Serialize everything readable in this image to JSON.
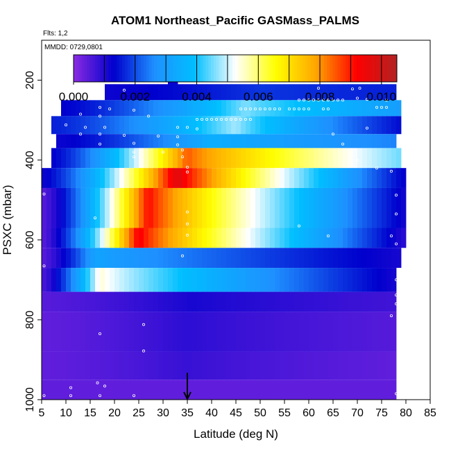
{
  "header": {
    "title": "ATOM1 Northeast_Pacific GASMass_PALMS",
    "flights": "Flts: 1,2",
    "mmdd": "MMDD: 0729,0801"
  },
  "chart_data": {
    "type": "heatmap",
    "title": "ATOM1 Northeast_Pacific GASMass_PALMS",
    "xlabel": "Latitude (deg N)",
    "ylabel": "PSXC (mbar)",
    "xlim": [
      5,
      85
    ],
    "ylim": [
      1000,
      100
    ],
    "x_ticks": [
      "5",
      "10",
      "15",
      "20",
      "25",
      "30",
      "35",
      "40",
      "45",
      "50",
      "55",
      "60",
      "65",
      "70",
      "75",
      "80",
      "85"
    ],
    "y_ticks": [
      "200",
      "400",
      "600",
      "800",
      "1000"
    ],
    "colorbar": {
      "range": [
        0,
        0.0105
      ],
      "ticks": [
        "0.000",
        "0.002",
        "0.004",
        "0.006",
        "0.008",
        "0.010"
      ],
      "tick_values": [
        0,
        0.002,
        0.004,
        0.006,
        0.008,
        0.01
      ],
      "divisions": [
        0.001,
        0.002,
        0.003,
        0.004,
        0.005,
        0.006,
        0.007,
        0.008,
        0.009,
        0.01
      ],
      "colors": [
        "#8a2be2",
        "#0000cd",
        "#1e90ff",
        "#00bfff",
        "#ffffff",
        "#ffff00",
        "#ffa500",
        "#ff0000",
        "#b22222"
      ]
    },
    "marker_latitude": 35,
    "rows": [
      {
        "p0": 175,
        "p1": 200,
        "x0": 31,
        "x1": 33,
        "start": 0.0005,
        "peak_lat": 32,
        "peak": 0.0005,
        "end": 0.0005
      },
      {
        "p0": 200,
        "p1": 225,
        "x0": 31,
        "x1": 33,
        "start": 0.0012,
        "peak_lat": 32,
        "peak": 0.0012,
        "end": 0.0012
      },
      {
        "p0": 210,
        "p1": 250,
        "x0": 18,
        "x1": 78,
        "start": 0.0012,
        "peak_lat": 50,
        "peak": 0.0018,
        "end": 0.0016
      },
      {
        "p0": 250,
        "p1": 290,
        "x0": 9,
        "x1": 79,
        "start": 0.0013,
        "peak_lat": 47,
        "peak": 0.0046,
        "end": 0.003
      },
      {
        "p0": 290,
        "p1": 335,
        "x0": 7,
        "x1": 79,
        "start": 0.0016,
        "peak_lat": 45,
        "peak": 0.0048,
        "end": 0.0014
      },
      {
        "p0": 335,
        "p1": 370,
        "x0": 8,
        "x1": 78,
        "start": 0.0012,
        "peak_lat": 40,
        "peak": 0.0035,
        "end": 0.0025
      },
      {
        "p0": 370,
        "p1": 420,
        "x0": 7,
        "x1": 79,
        "start": 0.0013,
        "peak_lat": 35,
        "peak": 0.0085,
        "end": 0.0045
      },
      {
        "p0": 420,
        "p1": 470,
        "x0": 5,
        "x1": 80,
        "start": 0.0012,
        "peak_lat": 33,
        "peak": 0.0098,
        "end": 0.0012
      },
      {
        "p0": 470,
        "p1": 570,
        "x0": 5,
        "x1": 80,
        "start": 0.0005,
        "peak_lat": 27,
        "peak": 0.0092,
        "end": 0.0011
      },
      {
        "p0": 570,
        "p1": 620,
        "x0": 5,
        "x1": 80,
        "start": 0.0005,
        "peak_lat": 25,
        "peak": 0.0094,
        "end": 0.0009
      },
      {
        "p0": 620,
        "p1": 670,
        "x0": 5,
        "x1": 79,
        "start": 0.0005,
        "peak_lat": 16,
        "peak": 0.0032,
        "end": 0.0011
      },
      {
        "p0": 670,
        "p1": 730,
        "x0": 5,
        "x1": 78,
        "start": 0.0006,
        "peak_lat": 17,
        "peak": 0.0055,
        "end": 0.0011
      },
      {
        "p0": 730,
        "p1": 780,
        "x0": 5,
        "x1": 78,
        "start": 0.0005,
        "peak_lat": 36,
        "peak": 0.0011,
        "end": 0.0007
      },
      {
        "p0": 780,
        "p1": 880,
        "x0": 5,
        "x1": 78,
        "start": 0.0004,
        "peak_lat": 35,
        "peak": 0.0009,
        "end": 0.0005
      },
      {
        "p0": 880,
        "p1": 950,
        "x0": 5,
        "x1": 78,
        "start": 0.0004,
        "peak_lat": 35,
        "peak": 0.0008,
        "end": 0.0004
      },
      {
        "p0": 950,
        "p1": 1000,
        "x0": 5,
        "x1": 78,
        "start": 0.0004,
        "peak_lat": 35,
        "peak": 0.0004,
        "end": 0.0004
      }
    ],
    "observations": [
      {
        "lat": 31.5,
        "p": 196
      },
      {
        "lat": 33,
        "p": 196
      },
      {
        "lat": 33.5,
        "p": 196
      },
      {
        "lat": 22,
        "p": 225
      },
      {
        "lat": 62,
        "p": 220
      },
      {
        "lat": 69,
        "p": 222
      },
      {
        "lat": 70.5,
        "p": 220
      },
      {
        "lat": 58,
        "p": 250
      },
      {
        "lat": 59,
        "p": 250
      },
      {
        "lat": 60,
        "p": 250
      },
      {
        "lat": 61,
        "p": 250
      },
      {
        "lat": 62,
        "p": 250
      },
      {
        "lat": 63,
        "p": 250
      },
      {
        "lat": 64,
        "p": 250
      },
      {
        "lat": 65,
        "p": 250
      },
      {
        "lat": 66,
        "p": 250
      },
      {
        "lat": 67,
        "p": 250
      },
      {
        "lat": 70,
        "p": 245
      },
      {
        "lat": 72,
        "p": 248
      },
      {
        "lat": 76,
        "p": 250
      },
      {
        "lat": 17,
        "p": 268
      },
      {
        "lat": 19,
        "p": 272
      },
      {
        "lat": 24,
        "p": 275
      },
      {
        "lat": 46,
        "p": 272
      },
      {
        "lat": 47,
        "p": 272
      },
      {
        "lat": 48,
        "p": 272
      },
      {
        "lat": 49,
        "p": 272
      },
      {
        "lat": 50,
        "p": 272
      },
      {
        "lat": 51,
        "p": 272
      },
      {
        "lat": 52,
        "p": 272
      },
      {
        "lat": 53,
        "p": 272
      },
      {
        "lat": 54,
        "p": 272
      },
      {
        "lat": 56,
        "p": 272
      },
      {
        "lat": 57,
        "p": 272
      },
      {
        "lat": 58,
        "p": 272
      },
      {
        "lat": 59,
        "p": 272
      },
      {
        "lat": 60,
        "p": 272
      },
      {
        "lat": 63,
        "p": 272
      },
      {
        "lat": 64,
        "p": 272
      },
      {
        "lat": 74,
        "p": 268
      },
      {
        "lat": 75,
        "p": 268
      },
      {
        "lat": 76,
        "p": 268
      },
      {
        "lat": 13,
        "p": 285
      },
      {
        "lat": 17,
        "p": 290
      },
      {
        "lat": 27,
        "p": 290
      },
      {
        "lat": 37,
        "p": 298
      },
      {
        "lat": 38,
        "p": 298
      },
      {
        "lat": 39,
        "p": 298
      },
      {
        "lat": 40,
        "p": 298
      },
      {
        "lat": 41,
        "p": 298
      },
      {
        "lat": 42,
        "p": 298
      },
      {
        "lat": 43,
        "p": 298
      },
      {
        "lat": 44,
        "p": 298
      },
      {
        "lat": 45,
        "p": 298
      },
      {
        "lat": 46,
        "p": 298
      },
      {
        "lat": 47,
        "p": 298
      },
      {
        "lat": 48,
        "p": 298
      },
      {
        "lat": 10,
        "p": 312
      },
      {
        "lat": 14,
        "p": 318
      },
      {
        "lat": 18,
        "p": 318
      },
      {
        "lat": 33,
        "p": 318
      },
      {
        "lat": 35,
        "p": 318
      },
      {
        "lat": 37,
        "p": 322
      },
      {
        "lat": 72,
        "p": 320
      },
      {
        "lat": 13,
        "p": 335
      },
      {
        "lat": 17,
        "p": 335
      },
      {
        "lat": 22,
        "p": 338
      },
      {
        "lat": 29,
        "p": 340
      },
      {
        "lat": 33,
        "p": 342
      },
      {
        "lat": 65,
        "p": 335
      },
      {
        "lat": 17,
        "p": 360
      },
      {
        "lat": 24,
        "p": 358
      },
      {
        "lat": 33,
        "p": 362
      },
      {
        "lat": 67,
        "p": 360
      },
      {
        "lat": 24,
        "p": 380
      },
      {
        "lat": 30,
        "p": 380
      },
      {
        "lat": 34,
        "p": 375
      },
      {
        "lat": 24,
        "p": 392
      },
      {
        "lat": 34,
        "p": 392
      },
      {
        "lat": 70,
        "p": 400
      },
      {
        "lat": 35,
        "p": 418
      },
      {
        "lat": 74,
        "p": 420
      },
      {
        "lat": 35,
        "p": 430
      },
      {
        "lat": 77,
        "p": 428
      },
      {
        "lat": 5.5,
        "p": 485
      },
      {
        "lat": 78,
        "p": 488
      },
      {
        "lat": 35,
        "p": 530
      },
      {
        "lat": 78,
        "p": 535
      },
      {
        "lat": 16,
        "p": 545
      },
      {
        "lat": 35,
        "p": 560
      },
      {
        "lat": 58,
        "p": 565
      },
      {
        "lat": 35,
        "p": 588
      },
      {
        "lat": 64,
        "p": 590
      },
      {
        "lat": 77,
        "p": 590
      },
      {
        "lat": 78,
        "p": 610
      },
      {
        "lat": 34,
        "p": 640
      },
      {
        "lat": 5.5,
        "p": 665
      },
      {
        "lat": 78,
        "p": 700
      },
      {
        "lat": 78,
        "p": 738
      },
      {
        "lat": 78,
        "p": 760
      },
      {
        "lat": 77,
        "p": 790
      },
      {
        "lat": 26,
        "p": 812
      },
      {
        "lat": 17,
        "p": 835
      },
      {
        "lat": 26,
        "p": 878
      },
      {
        "lat": 16.5,
        "p": 958
      },
      {
        "lat": 11,
        "p": 970
      },
      {
        "lat": 18,
        "p": 966
      },
      {
        "lat": 5.5,
        "p": 990
      },
      {
        "lat": 11,
        "p": 990
      },
      {
        "lat": 17,
        "p": 990
      },
      {
        "lat": 24,
        "p": 990
      },
      {
        "lat": 78,
        "p": 985
      }
    ]
  }
}
